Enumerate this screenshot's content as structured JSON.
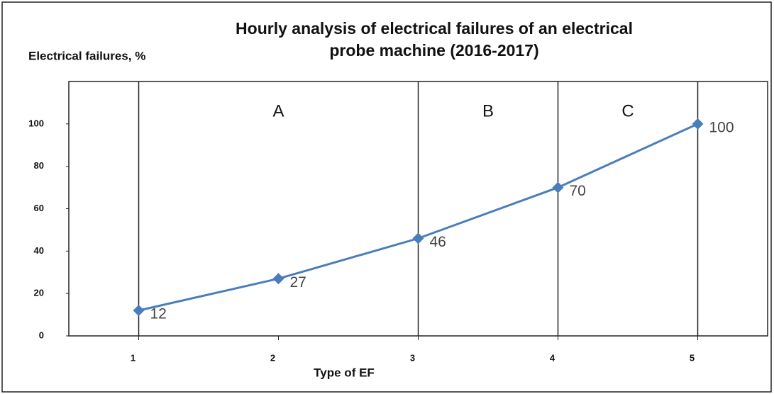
{
  "chart_data": {
    "type": "line",
    "title": "Hourly analysis of electrical failures of an electrical",
    "subtitle": "probe machine (2016-2017)",
    "y_label": "Electrical failures, %",
    "x_label": "Type of EF",
    "x": [
      1,
      2,
      3,
      4,
      5
    ],
    "series": [
      {
        "name": "Electrical failures",
        "color": "#4a7ebb",
        "values": [
          12,
          27,
          46,
          70,
          100
        ]
      }
    ],
    "xlim": [
      0.5,
      5.5
    ],
    "xticks": [
      1,
      2,
      3,
      4,
      5
    ],
    "ylim": [
      0,
      120
    ],
    "yticks": [
      0,
      20,
      40,
      60,
      80,
      100
    ],
    "zones": [
      {
        "label": "A",
        "start": 1,
        "end": 3
      },
      {
        "label": "B",
        "start": 3,
        "end": 4
      },
      {
        "label": "C",
        "start": 4,
        "end": 5
      }
    ]
  }
}
